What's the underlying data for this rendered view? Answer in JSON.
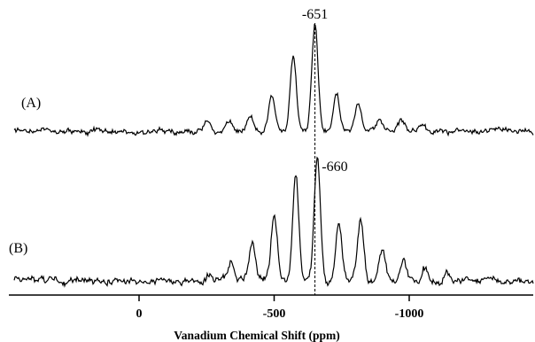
{
  "chart_data": {
    "type": "line",
    "xlabel": "Vanadium Chemical Shift (ppm)",
    "x_axis_reversed": true,
    "xlim": [
      500,
      -1450
    ],
    "x_ticks": [
      {
        "value": 0,
        "label": "0"
      },
      {
        "value": -500,
        "label": "-500"
      },
      {
        "value": -1000,
        "label": "-1000"
      }
    ],
    "y_axis": "none",
    "grid": false,
    "legend": "none",
    "spinning_sideband_spacing_ppm": 80,
    "series": [
      {
        "name": "(A)",
        "center_ppm": -651,
        "peak_label": "-651",
        "sideband_intensities": [
          {
            "x": -251,
            "y": 0.08
          },
          {
            "x": -331,
            "y": 0.1
          },
          {
            "x": -411,
            "y": 0.15
          },
          {
            "x": -491,
            "y": 0.35
          },
          {
            "x": -571,
            "y": 0.7
          },
          {
            "x": -651,
            "y": 1.0
          },
          {
            "x": -731,
            "y": 0.35
          },
          {
            "x": -811,
            "y": 0.25
          },
          {
            "x": -891,
            "y": 0.12
          },
          {
            "x": -971,
            "y": 0.1
          },
          {
            "x": -1051,
            "y": 0.06
          }
        ]
      },
      {
        "name": "(B)",
        "center_ppm": -660,
        "peak_label": "-660",
        "sideband_intensities": [
          {
            "x": -260,
            "y": 0.06
          },
          {
            "x": -340,
            "y": 0.15
          },
          {
            "x": -420,
            "y": 0.3
          },
          {
            "x": -500,
            "y": 0.52
          },
          {
            "x": -580,
            "y": 0.85
          },
          {
            "x": -660,
            "y": 1.0
          },
          {
            "x": -740,
            "y": 0.45
          },
          {
            "x": -820,
            "y": 0.5
          },
          {
            "x": -900,
            "y": 0.28
          },
          {
            "x": -980,
            "y": 0.14
          },
          {
            "x": -1060,
            "y": 0.1
          },
          {
            "x": -1140,
            "y": 0.06
          }
        ]
      }
    ],
    "reference_lines": [
      {
        "x": -651,
        "style": "dashed",
        "spans": "trace (A) to axis"
      }
    ]
  }
}
